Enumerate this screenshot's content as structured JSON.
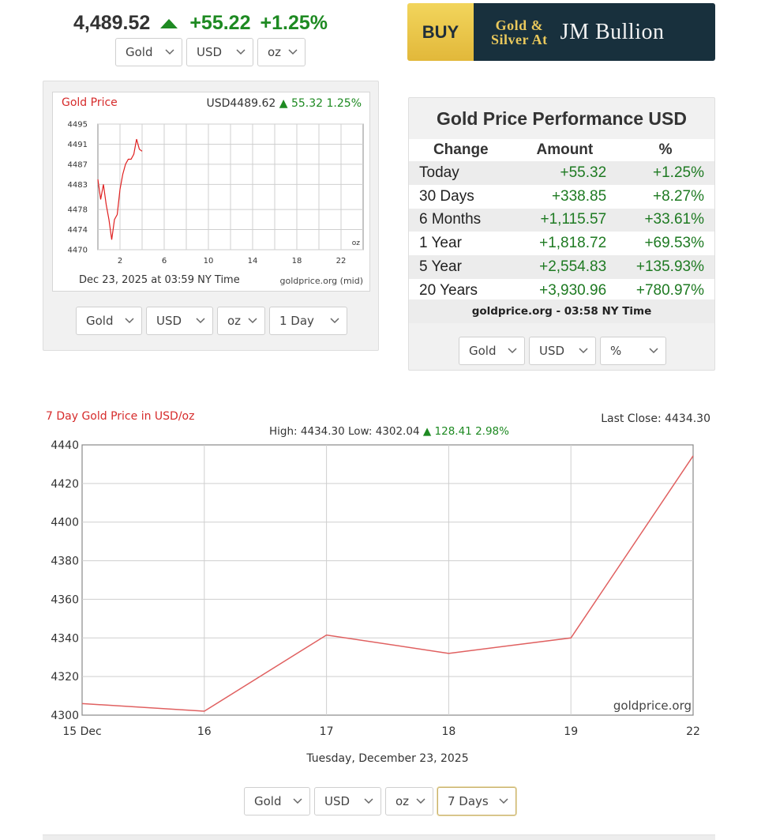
{
  "header": {
    "spot_price": "4,489.52",
    "spot_change": "+55.22",
    "spot_pct": "+1.25%",
    "selectors": [
      "Gold",
      "USD",
      "oz"
    ]
  },
  "ad": {
    "buy_label": "BUY",
    "gold_silver_line1": "Gold &",
    "gold_silver_line2": "Silver At",
    "brand": "JM Bullion",
    "brand_color": "#18303d",
    "gold_color": "#e9c85c"
  },
  "live_chart": {
    "title": "Gold Price",
    "readout_currency": "USD4489.62",
    "readout_change": "55.32",
    "readout_pct": "1.25%",
    "unit_label": "oz",
    "timestamp": "Dec 23, 2025 at 03:59 NY Time",
    "source": "goldprice.org (mid)",
    "selectors": [
      "Gold",
      "USD",
      "oz",
      "1 Day"
    ]
  },
  "performance": {
    "title": "Gold Price Performance USD",
    "columns": [
      "Change",
      "Amount",
      "%"
    ],
    "rows": [
      {
        "period": "Today",
        "amount": "+55.32",
        "pct": "+1.25%"
      },
      {
        "period": "30 Days",
        "amount": "+338.85",
        "pct": "+8.27%"
      },
      {
        "period": "6 Months",
        "amount": "+1,115.57",
        "pct": "+33.61%"
      },
      {
        "period": "1 Year",
        "amount": "+1,818.72",
        "pct": "+69.53%"
      },
      {
        "period": "5 Year",
        "amount": "+2,554.83",
        "pct": "+135.93%"
      },
      {
        "period": "20 Years",
        "amount": "+3,930.96",
        "pct": "+780.97%"
      }
    ],
    "source": "goldprice.org - 03:58 NY Time",
    "selectors": [
      "Gold",
      "USD",
      "%"
    ]
  },
  "week_chart": {
    "title": "7 Day Gold Price in USD/oz",
    "last_close": "Last Close: 4434.30",
    "high_low": "High: 4434.30 Low: 4302.04",
    "change": "128.41",
    "change_pct": "2.98%",
    "date_line": "Tuesday, December 23, 2025",
    "watermark": "goldprice.org",
    "selectors": [
      "Gold",
      "USD",
      "oz",
      "7 Days"
    ]
  },
  "chart_data": [
    {
      "type": "line",
      "title": "Gold Price",
      "x": [
        0,
        0.25,
        0.5,
        0.75,
        1,
        1.25,
        1.5,
        1.75,
        2,
        2.25,
        2.5,
        2.75,
        3,
        3.25,
        3.5,
        3.75,
        4
      ],
      "x_ticks": [
        "2",
        "6",
        "10",
        "14",
        "18",
        "22"
      ],
      "y": [
        4484,
        4480,
        4483,
        4479,
        4476,
        4472,
        4476,
        4477,
        4482,
        4485,
        4487,
        4488,
        4488,
        4489,
        4492,
        4490,
        4489.6
      ],
      "ylim": [
        4470,
        4495
      ],
      "y_ticks": [
        4470,
        4474,
        4478,
        4483,
        4487,
        4491,
        4495
      ],
      "grid": true,
      "color": "#e02020"
    },
    {
      "type": "line",
      "title": "7 Day Gold Price in USD/oz",
      "categories": [
        "15 Dec",
        "16",
        "17",
        "18",
        "19",
        "22"
      ],
      "values": [
        4306,
        4302.04,
        4341.5,
        4332,
        4340,
        4434.3
      ],
      "ylim": [
        4300,
        4440
      ],
      "y_ticks": [
        4300,
        4320,
        4340,
        4360,
        4380,
        4400,
        4420,
        4440
      ],
      "grid": true,
      "color": "#e06060"
    }
  ]
}
